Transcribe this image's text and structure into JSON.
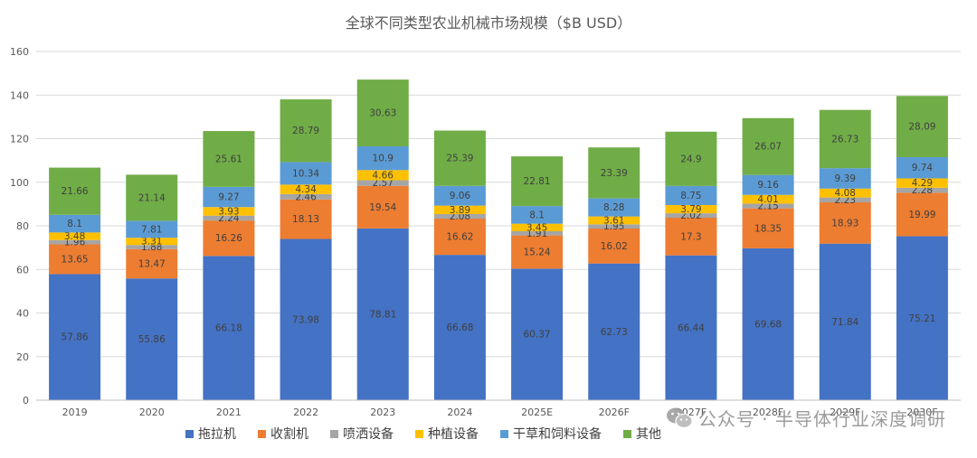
{
  "chart_data": {
    "type": "stacked-bar",
    "title": "全球不同类型农业机械市场规模（$B USD）",
    "categories": [
      "2019",
      "2020",
      "2021",
      "2022",
      "2023",
      "2024",
      "2025E",
      "2026F",
      "2027F",
      "2028F",
      "2029F",
      "2030F"
    ],
    "ylim": [
      0,
      160
    ],
    "yticks": [
      0,
      20,
      40,
      60,
      80,
      100,
      120,
      140,
      160
    ],
    "grid": true,
    "legend_position": "bottom",
    "series": [
      {
        "name": "拖拉机",
        "color": "#4472C4",
        "values": [
          57.86,
          55.86,
          66.18,
          73.98,
          78.81,
          66.68,
          60.37,
          62.73,
          66.44,
          69.68,
          71.84,
          75.21
        ]
      },
      {
        "name": "收割机",
        "color": "#ED7D31",
        "values": [
          13.65,
          13.47,
          16.26,
          18.13,
          19.54,
          16.62,
          15.24,
          16.02,
          17.3,
          18.35,
          18.93,
          19.99
        ]
      },
      {
        "name": "喷洒设备",
        "color": "#A5A5A5",
        "values": [
          1.96,
          1.88,
          2.24,
          2.46,
          2.57,
          2.08,
          1.91,
          1.95,
          2.02,
          2.15,
          2.23,
          2.28
        ]
      },
      {
        "name": "种植设备",
        "color": "#FFC000",
        "values": [
          3.48,
          3.31,
          3.93,
          4.34,
          4.66,
          3.89,
          3.45,
          3.61,
          3.79,
          4.01,
          4.08,
          4.29
        ]
      },
      {
        "name": "干草和饲料设备",
        "color": "#5B9BD5",
        "values": [
          8.1,
          7.81,
          9.27,
          10.34,
          10.9,
          9.06,
          8.1,
          8.28,
          8.75,
          9.16,
          9.39,
          9.74
        ]
      },
      {
        "name": "其他",
        "color": "#70AD47",
        "values": [
          21.66,
          21.14,
          25.61,
          28.79,
          30.63,
          25.39,
          22.81,
          23.39,
          24.9,
          26.07,
          26.73,
          28.09
        ]
      }
    ]
  },
  "watermark": {
    "text": "公众号 · 半导体行业深度调研",
    "icon": "wechat-icon"
  }
}
